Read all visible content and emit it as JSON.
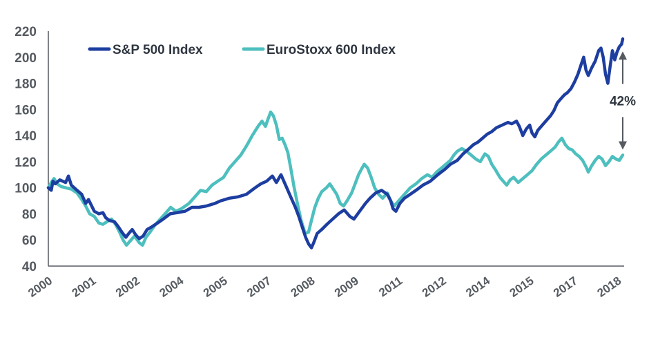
{
  "chart_data": {
    "type": "line",
    "title": "",
    "xlabel": "",
    "ylabel": "",
    "ylim": [
      40,
      220
    ],
    "yticks": [
      "40",
      "60",
      "80",
      "100",
      "120",
      "140",
      "160",
      "180",
      "200",
      "220"
    ],
    "xticks": [
      {
        "label": "2000",
        "t": 0
      },
      {
        "label": "2001",
        "t": 0.0762
      },
      {
        "label": "2002",
        "t": 0.1524
      },
      {
        "label": "2004",
        "t": 0.2286
      },
      {
        "label": "2005",
        "t": 0.3048
      },
      {
        "label": "2007",
        "t": 0.381
      },
      {
        "label": "2008",
        "t": 0.4572
      },
      {
        "label": "2009",
        "t": 0.5334
      },
      {
        "label": "2011",
        "t": 0.6096
      },
      {
        "label": "2012",
        "t": 0.6858
      },
      {
        "label": "2014",
        "t": 0.762
      },
      {
        "label": "2015",
        "t": 0.8382
      },
      {
        "label": "2017",
        "t": 0.9144
      },
      {
        "label": "2018",
        "t": 0.9906
      }
    ],
    "legend_position": "top-left",
    "series": [
      {
        "name": "S&P 500 Index",
        "color": "#1d3ea0",
        "points": [
          [
            0,
            100
          ],
          [
            0.005,
            98
          ],
          [
            0.008,
            105
          ],
          [
            0.012,
            103
          ],
          [
            0.02,
            106
          ],
          [
            0.03,
            104
          ],
          [
            0.035,
            109
          ],
          [
            0.04,
            102
          ],
          [
            0.05,
            98
          ],
          [
            0.058,
            95
          ],
          [
            0.065,
            88
          ],
          [
            0.07,
            91
          ],
          [
            0.08,
            82
          ],
          [
            0.088,
            80
          ],
          [
            0.095,
            81
          ],
          [
            0.1,
            77
          ],
          [
            0.106,
            75
          ],
          [
            0.115,
            74
          ],
          [
            0.122,
            70
          ],
          [
            0.128,
            66
          ],
          [
            0.135,
            62
          ],
          [
            0.14,
            65
          ],
          [
            0.146,
            68
          ],
          [
            0.152,
            64
          ],
          [
            0.158,
            61
          ],
          [
            0.165,
            63
          ],
          [
            0.172,
            68
          ],
          [
            0.18,
            70
          ],
          [
            0.19,
            73
          ],
          [
            0.2,
            76
          ],
          [
            0.212,
            80
          ],
          [
            0.225,
            81
          ],
          [
            0.238,
            82
          ],
          [
            0.25,
            85
          ],
          [
            0.262,
            85
          ],
          [
            0.275,
            86
          ],
          [
            0.29,
            88
          ],
          [
            0.3,
            90
          ],
          [
            0.315,
            92
          ],
          [
            0.33,
            93
          ],
          [
            0.345,
            95
          ],
          [
            0.36,
            100
          ],
          [
            0.37,
            103
          ],
          [
            0.38,
            105
          ],
          [
            0.39,
            109
          ],
          [
            0.397,
            104
          ],
          [
            0.405,
            110
          ],
          [
            0.41,
            105
          ],
          [
            0.415,
            100
          ],
          [
            0.42,
            95
          ],
          [
            0.425,
            90
          ],
          [
            0.43,
            85
          ],
          [
            0.436,
            78
          ],
          [
            0.442,
            70
          ],
          [
            0.448,
            62
          ],
          [
            0.453,
            57
          ],
          [
            0.458,
            54
          ],
          [
            0.462,
            58
          ],
          [
            0.468,
            65
          ],
          [
            0.476,
            68
          ],
          [
            0.485,
            72
          ],
          [
            0.495,
            76
          ],
          [
            0.505,
            80
          ],
          [
            0.515,
            83
          ],
          [
            0.525,
            78
          ],
          [
            0.532,
            76
          ],
          [
            0.542,
            82
          ],
          [
            0.552,
            88
          ],
          [
            0.56,
            92
          ],
          [
            0.57,
            96
          ],
          [
            0.58,
            98
          ],
          [
            0.59,
            95
          ],
          [
            0.596,
            90
          ],
          [
            0.6,
            84
          ],
          [
            0.605,
            82
          ],
          [
            0.612,
            88
          ],
          [
            0.62,
            92
          ],
          [
            0.63,
            95
          ],
          [
            0.64,
            98
          ],
          [
            0.652,
            102
          ],
          [
            0.665,
            105
          ],
          [
            0.678,
            110
          ],
          [
            0.69,
            114
          ],
          [
            0.7,
            118
          ],
          [
            0.712,
            121
          ],
          [
            0.722,
            126
          ],
          [
            0.73,
            129
          ],
          [
            0.74,
            133
          ],
          [
            0.748,
            135
          ],
          [
            0.756,
            138
          ],
          [
            0.764,
            141
          ],
          [
            0.772,
            143
          ],
          [
            0.78,
            146
          ],
          [
            0.79,
            148
          ],
          [
            0.8,
            150
          ],
          [
            0.807,
            149
          ],
          [
            0.815,
            151
          ],
          [
            0.82,
            147
          ],
          [
            0.826,
            140
          ],
          [
            0.832,
            145
          ],
          [
            0.838,
            148
          ],
          [
            0.842,
            142
          ],
          [
            0.847,
            139
          ],
          [
            0.852,
            144
          ],
          [
            0.86,
            148
          ],
          [
            0.868,
            152
          ],
          [
            0.874,
            155
          ],
          [
            0.88,
            159
          ],
          [
            0.886,
            165
          ],
          [
            0.892,
            168
          ],
          [
            0.898,
            171
          ],
          [
            0.904,
            173
          ],
          [
            0.91,
            176
          ],
          [
            0.916,
            181
          ],
          [
            0.922,
            187
          ],
          [
            0.928,
            195
          ],
          [
            0.932,
            200
          ],
          [
            0.936,
            190
          ],
          [
            0.94,
            186
          ],
          [
            0.946,
            192
          ],
          [
            0.952,
            197
          ],
          [
            0.958,
            205
          ],
          [
            0.962,
            207
          ],
          [
            0.966,
            200
          ],
          [
            0.97,
            187
          ],
          [
            0.974,
            180
          ],
          [
            0.978,
            193
          ],
          [
            0.982,
            205
          ],
          [
            0.986,
            198
          ],
          [
            0.99,
            204
          ],
          [
            0.994,
            208
          ],
          [
            0.998,
            210
          ],
          [
            1,
            214
          ]
        ]
      },
      {
        "name": "EuroStoxx 600 Index",
        "color": "#4dbfbe",
        "points": [
          [
            0,
            100
          ],
          [
            0.005,
            104
          ],
          [
            0.01,
            107
          ],
          [
            0.015,
            103
          ],
          [
            0.022,
            101
          ],
          [
            0.03,
            100
          ],
          [
            0.04,
            99
          ],
          [
            0.05,
            96
          ],
          [
            0.058,
            91
          ],
          [
            0.065,
            86
          ],
          [
            0.072,
            80
          ],
          [
            0.08,
            78
          ],
          [
            0.088,
            73
          ],
          [
            0.095,
            72
          ],
          [
            0.102,
            74
          ],
          [
            0.11,
            76
          ],
          [
            0.117,
            72
          ],
          [
            0.124,
            66
          ],
          [
            0.13,
            60
          ],
          [
            0.136,
            56
          ],
          [
            0.142,
            59
          ],
          [
            0.15,
            63
          ],
          [
            0.158,
            58
          ],
          [
            0.164,
            56
          ],
          [
            0.17,
            62
          ],
          [
            0.177,
            66
          ],
          [
            0.185,
            71
          ],
          [
            0.195,
            76
          ],
          [
            0.205,
            81
          ],
          [
            0.213,
            85
          ],
          [
            0.222,
            82
          ],
          [
            0.232,
            84
          ],
          [
            0.245,
            88
          ],
          [
            0.255,
            93
          ],
          [
            0.265,
            98
          ],
          [
            0.275,
            97
          ],
          [
            0.285,
            102
          ],
          [
            0.295,
            105
          ],
          [
            0.305,
            108
          ],
          [
            0.315,
            115
          ],
          [
            0.325,
            120
          ],
          [
            0.335,
            125
          ],
          [
            0.345,
            132
          ],
          [
            0.355,
            140
          ],
          [
            0.365,
            147
          ],
          [
            0.372,
            151
          ],
          [
            0.378,
            147
          ],
          [
            0.382,
            152
          ],
          [
            0.387,
            158
          ],
          [
            0.392,
            155
          ],
          [
            0.397,
            148
          ],
          [
            0.402,
            137
          ],
          [
            0.407,
            138
          ],
          [
            0.412,
            133
          ],
          [
            0.417,
            127
          ],
          [
            0.422,
            115
          ],
          [
            0.428,
            100
          ],
          [
            0.434,
            87
          ],
          [
            0.44,
            75
          ],
          [
            0.447,
            65
          ],
          [
            0.453,
            66
          ],
          [
            0.458,
            75
          ],
          [
            0.464,
            85
          ],
          [
            0.47,
            92
          ],
          [
            0.476,
            97
          ],
          [
            0.484,
            100
          ],
          [
            0.49,
            103
          ],
          [
            0.496,
            99
          ],
          [
            0.502,
            95
          ],
          [
            0.508,
            88
          ],
          [
            0.514,
            86
          ],
          [
            0.52,
            90
          ],
          [
            0.528,
            96
          ],
          [
            0.535,
            104
          ],
          [
            0.54,
            110
          ],
          [
            0.546,
            115
          ],
          [
            0.55,
            118
          ],
          [
            0.556,
            115
          ],
          [
            0.562,
            108
          ],
          [
            0.568,
            100
          ],
          [
            0.575,
            95
          ],
          [
            0.582,
            92
          ],
          [
            0.59,
            96
          ],
          [
            0.596,
            90
          ],
          [
            0.602,
            86
          ],
          [
            0.61,
            90
          ],
          [
            0.62,
            95
          ],
          [
            0.63,
            100
          ],
          [
            0.64,
            103
          ],
          [
            0.65,
            107
          ],
          [
            0.66,
            110
          ],
          [
            0.668,
            108
          ],
          [
            0.676,
            112
          ],
          [
            0.684,
            115
          ],
          [
            0.692,
            118
          ],
          [
            0.7,
            121
          ],
          [
            0.706,
            125
          ],
          [
            0.712,
            128
          ],
          [
            0.72,
            130
          ],
          [
            0.728,
            128
          ],
          [
            0.736,
            125
          ],
          [
            0.744,
            122
          ],
          [
            0.752,
            120
          ],
          [
            0.76,
            126
          ],
          [
            0.766,
            124
          ],
          [
            0.772,
            118
          ],
          [
            0.778,
            114
          ],
          [
            0.786,
            108
          ],
          [
            0.792,
            105
          ],
          [
            0.798,
            102
          ],
          [
            0.804,
            106
          ],
          [
            0.81,
            108
          ],
          [
            0.818,
            104
          ],
          [
            0.826,
            107
          ],
          [
            0.834,
            110
          ],
          [
            0.842,
            113
          ],
          [
            0.85,
            118
          ],
          [
            0.858,
            122
          ],
          [
            0.866,
            125
          ],
          [
            0.874,
            128
          ],
          [
            0.882,
            131
          ],
          [
            0.888,
            135
          ],
          [
            0.894,
            138
          ],
          [
            0.9,
            133
          ],
          [
            0.906,
            130
          ],
          [
            0.912,
            129
          ],
          [
            0.918,
            126
          ],
          [
            0.924,
            124
          ],
          [
            0.93,
            121
          ],
          [
            0.936,
            116
          ],
          [
            0.94,
            112
          ],
          [
            0.946,
            117
          ],
          [
            0.952,
            121
          ],
          [
            0.958,
            124
          ],
          [
            0.964,
            122
          ],
          [
            0.97,
            117
          ],
          [
            0.976,
            120
          ],
          [
            0.982,
            124
          ],
          [
            0.988,
            122
          ],
          [
            0.994,
            121
          ],
          [
            1,
            125
          ]
        ]
      }
    ],
    "annotations": [
      {
        "text": "42%",
        "from_value": 214,
        "to_value": 125
      }
    ]
  }
}
